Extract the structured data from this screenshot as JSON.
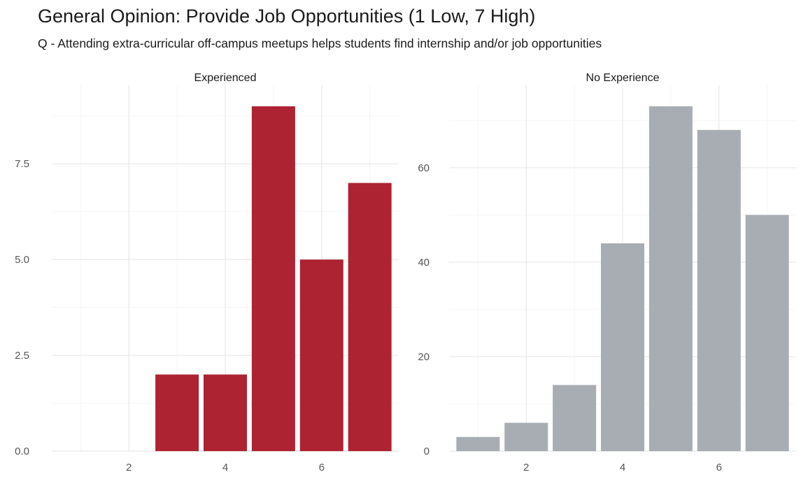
{
  "title": "General Opinion: Provide Job Opportunities (1 Low, 7 High)",
  "subtitle": "Q - Attending extra-curricular off-campus meetups helps students find internship and/or job opportunities",
  "chart_data": [
    {
      "type": "bar",
      "facet": "Experienced",
      "color": "#ad2332",
      "x": [
        3,
        4,
        5,
        6,
        7
      ],
      "values": [
        2,
        2,
        9,
        5,
        7
      ],
      "xlim": [
        0.4,
        7.6
      ],
      "ylim": [
        0,
        9
      ],
      "x_ticks": [
        2,
        4,
        6
      ],
      "x_tick_labels": [
        "2",
        "4",
        "6"
      ],
      "y_ticks": [
        0,
        2.5,
        5,
        7.5
      ],
      "y_tick_labels": [
        "0.0",
        "2.5",
        "5.0",
        "7.5"
      ],
      "grid": true
    },
    {
      "type": "bar",
      "facet": "No Experience",
      "color": "#a8adb3",
      "x": [
        1,
        2,
        3,
        4,
        5,
        6,
        7
      ],
      "values": [
        3,
        6,
        14,
        44,
        73,
        68,
        50
      ],
      "xlim": [
        0.4,
        7.6
      ],
      "ylim": [
        0,
        73
      ],
      "x_ticks": [
        2,
        4,
        6
      ],
      "x_tick_labels": [
        "2",
        "4",
        "6"
      ],
      "y_ticks": [
        0,
        20,
        40,
        60
      ],
      "y_tick_labels": [
        "0",
        "20",
        "40",
        "60"
      ],
      "grid": true
    }
  ]
}
